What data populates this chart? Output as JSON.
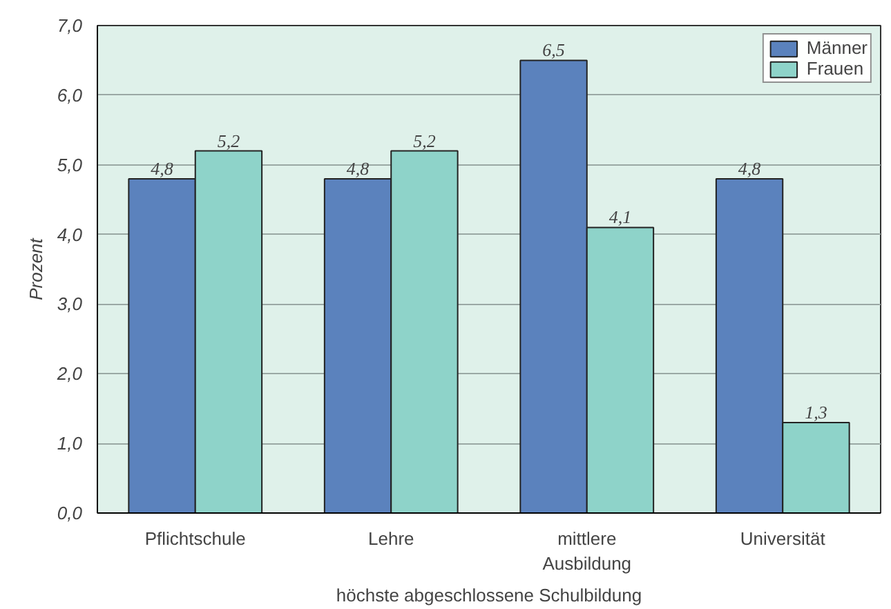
{
  "chart_data": {
    "type": "bar",
    "xlabel": "höchste abgeschlossene Schulbildung",
    "ylabel": "Prozent",
    "categories": [
      "Pflichtschule",
      "Lehre",
      "mittlere Ausbildung",
      "Universität"
    ],
    "series": [
      {
        "name": "Männer",
        "color": "#5b82bd",
        "values": [
          4.8,
          4.8,
          6.5,
          4.8
        ],
        "value_labels": [
          "4,8",
          "4,8",
          "6,5",
          "4,8"
        ]
      },
      {
        "name": "Frauen",
        "color": "#8ed3c9",
        "values": [
          5.2,
          5.2,
          4.1,
          1.3
        ],
        "value_labels": [
          "5,2",
          "5,2",
          "4,1",
          "1,3"
        ]
      }
    ],
    "ylim": [
      0,
      7
    ],
    "yticks": [
      {
        "value": 0,
        "label": "0,0"
      },
      {
        "value": 1,
        "label": "1,0"
      },
      {
        "value": 2,
        "label": "2,0"
      },
      {
        "value": 3,
        "label": "3,0"
      },
      {
        "value": 4,
        "label": "4,0"
      },
      {
        "value": 5,
        "label": "5,0"
      },
      {
        "value": 6,
        "label": "6,0"
      },
      {
        "value": 7,
        "label": "7,0"
      }
    ],
    "grid": "y",
    "legend": "top right"
  }
}
